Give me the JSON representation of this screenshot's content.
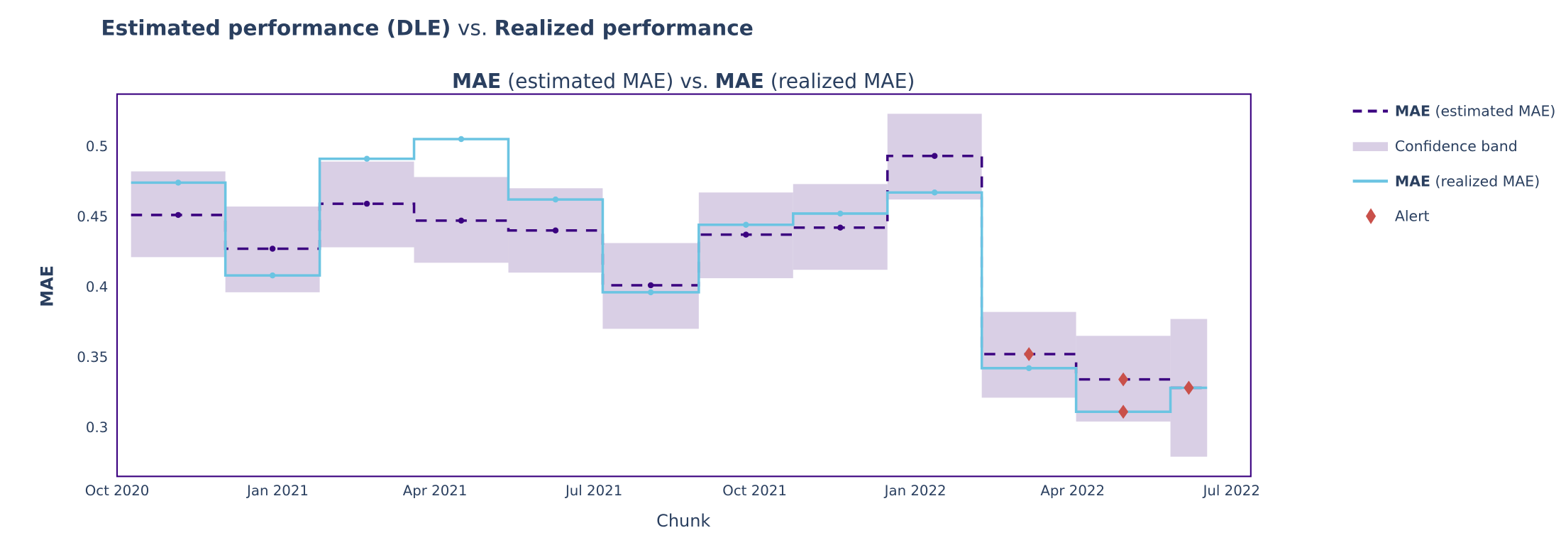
{
  "title": {
    "bold1": "Estimated performance (DLE)",
    "mid": " vs. ",
    "bold2": "Realized performance"
  },
  "subtitle": {
    "bold1": "MAE",
    "rest1": " (estimated MAE) vs. ",
    "bold2": "MAE",
    "rest2": " (realized MAE)"
  },
  "legend": [
    {
      "bold": "MAE",
      "rest": " (estimated MAE)"
    },
    {
      "bold": "",
      "rest": "Confidence band"
    },
    {
      "bold": "MAE",
      "rest": " (realized MAE)"
    },
    {
      "bold": "",
      "rest": "Alert"
    }
  ],
  "colors": {
    "estimated": "#3b0280",
    "realized": "#6bc4e2",
    "band": "#d9cfe5",
    "alert": "#c9504a",
    "frame": "#3b0280"
  },
  "chart_data": {
    "type": "line",
    "xlabel": "Chunk",
    "ylabel": "MAE",
    "ylim": [
      0.265,
      0.537
    ],
    "xlim": [
      "2020-10-01",
      "2022-07-12"
    ],
    "grid": false,
    "legend_position": "right",
    "x_ticks": [
      {
        "date": "2020-10-01",
        "label": "Oct 2020"
      },
      {
        "date": "2021-01-01",
        "label": "Jan 2021"
      },
      {
        "date": "2021-04-01",
        "label": "Apr 2021"
      },
      {
        "date": "2021-07-01",
        "label": "Jul 2021"
      },
      {
        "date": "2021-10-01",
        "label": "Oct 2021"
      },
      {
        "date": "2022-01-01",
        "label": "Jan 2022"
      },
      {
        "date": "2022-04-01",
        "label": "Apr 2022"
      },
      {
        "date": "2022-07-01",
        "label": "Jul 2022"
      }
    ],
    "y_ticks": [
      {
        "value": 0.3,
        "label": "0.3"
      },
      {
        "value": 0.35,
        "label": "0.35"
      },
      {
        "value": 0.4,
        "label": "0.4"
      },
      {
        "value": 0.45,
        "label": "0.45"
      },
      {
        "value": 0.5,
        "label": "0.5"
      }
    ],
    "chunks": [
      {
        "start": "2020-10-09",
        "end": "2020-12-02",
        "estimated": 0.451,
        "realized": 0.474,
        "lower": 0.421,
        "upper": 0.482,
        "alert_est": false,
        "alert_real": false
      },
      {
        "start": "2020-12-02",
        "end": "2021-01-25",
        "estimated": 0.427,
        "realized": 0.408,
        "lower": 0.396,
        "upper": 0.457,
        "alert_est": false,
        "alert_real": false
      },
      {
        "start": "2021-01-25",
        "end": "2021-03-20",
        "estimated": 0.459,
        "realized": 0.491,
        "lower": 0.428,
        "upper": 0.489,
        "alert_est": false,
        "alert_real": false
      },
      {
        "start": "2021-03-20",
        "end": "2021-05-13",
        "estimated": 0.447,
        "realized": 0.505,
        "lower": 0.417,
        "upper": 0.478,
        "alert_est": false,
        "alert_real": false
      },
      {
        "start": "2021-05-13",
        "end": "2021-07-06",
        "estimated": 0.44,
        "realized": 0.462,
        "lower": 0.41,
        "upper": 0.47,
        "alert_est": false,
        "alert_real": false
      },
      {
        "start": "2021-07-06",
        "end": "2021-08-30",
        "estimated": 0.401,
        "realized": 0.396,
        "lower": 0.37,
        "upper": 0.431,
        "alert_est": false,
        "alert_real": false
      },
      {
        "start": "2021-08-30",
        "end": "2021-10-23",
        "estimated": 0.437,
        "realized": 0.444,
        "lower": 0.406,
        "upper": 0.467,
        "alert_est": false,
        "alert_real": false
      },
      {
        "start": "2021-10-23",
        "end": "2021-12-16",
        "estimated": 0.442,
        "realized": 0.452,
        "lower": 0.412,
        "upper": 0.473,
        "alert_est": false,
        "alert_real": false
      },
      {
        "start": "2021-12-16",
        "end": "2022-02-08",
        "estimated": 0.493,
        "realized": 0.467,
        "lower": 0.462,
        "upper": 0.523,
        "alert_est": false,
        "alert_real": false
      },
      {
        "start": "2022-02-08",
        "end": "2022-04-03",
        "estimated": 0.352,
        "realized": 0.342,
        "lower": 0.321,
        "upper": 0.382,
        "alert_est": true,
        "alert_real": false
      },
      {
        "start": "2022-04-03",
        "end": "2022-05-27",
        "estimated": 0.334,
        "realized": 0.311,
        "lower": 0.304,
        "upper": 0.365,
        "alert_est": true,
        "alert_real": true
      },
      {
        "start": "2022-05-27",
        "end": "2022-06-17",
        "estimated": 0.328,
        "realized": 0.328,
        "lower": 0.279,
        "upper": 0.377,
        "alert_est": true,
        "alert_real": true
      }
    ]
  }
}
